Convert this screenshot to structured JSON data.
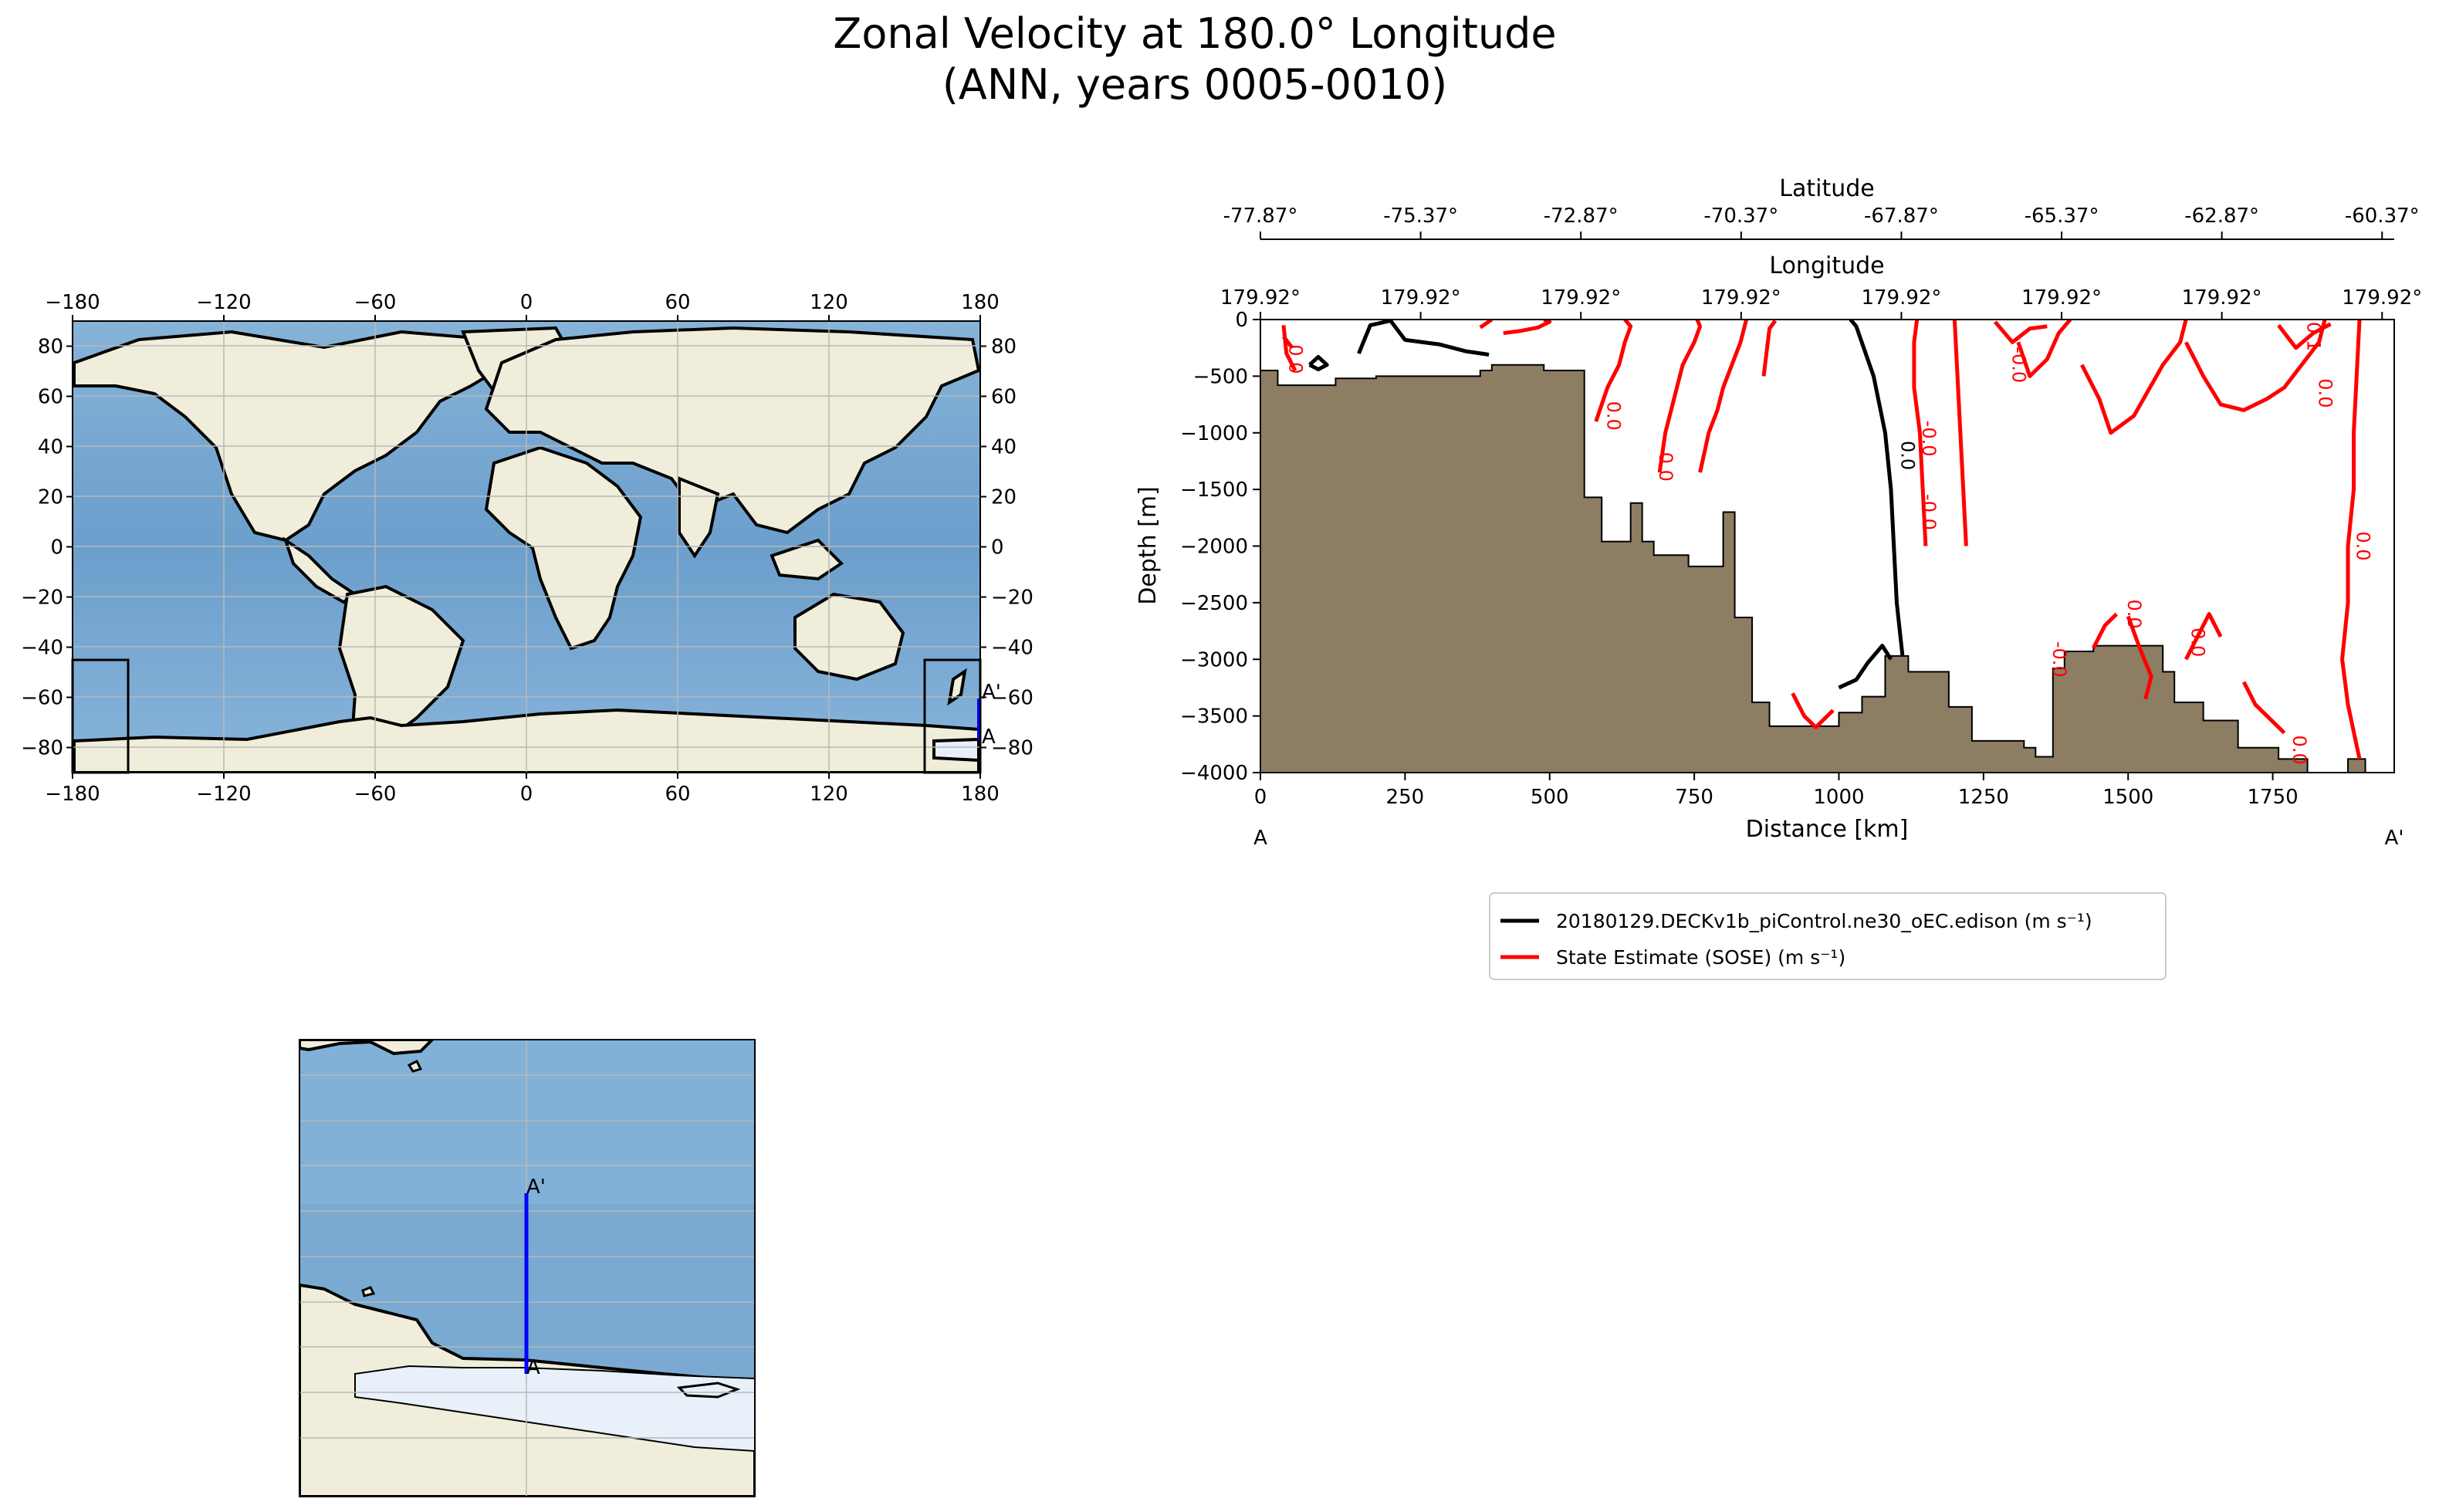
{
  "title": {
    "line1": "Zonal Velocity at 180.0° Longitude",
    "line2": "(ANN, years 0005-0010)"
  },
  "colors": {
    "ocean": "#7aaad2",
    "ocean_dark": "#5f93c2",
    "land": "#f0eedb",
    "ice": "#e8f0fa",
    "seafloor": "#8c7d63",
    "model_line": "#000000",
    "sose_line": "#ff0000",
    "transect": "#0000ff",
    "grid": "#b0b0b0"
  },
  "map": {
    "lon_ticks": [
      "−180",
      "−120",
      "−60",
      "0",
      "60",
      "120",
      "180"
    ],
    "lat_ticks": [
      "80",
      "60",
      "40",
      "20",
      "0",
      "−20",
      "−40",
      "−60",
      "−80"
    ],
    "lon_values": [
      -180,
      -120,
      -60,
      0,
      60,
      120,
      180
    ],
    "lat_values": [
      80,
      60,
      40,
      20,
      0,
      -20,
      -40,
      -60,
      -80
    ],
    "start_label": "A",
    "end_label": "A'"
  },
  "inset": {
    "start_label": "A",
    "end_label": "A'"
  },
  "chart_data": {
    "type": "line",
    "title": "Zonal Velocity at 180.0° Longitude",
    "xlabel": "Distance [km]",
    "ylabel": "Depth [m]",
    "xlim": [
      0,
      1960
    ],
    "ylim": [
      -4000,
      0
    ],
    "x_ticks": [
      0,
      250,
      500,
      750,
      1000,
      1250,
      1500,
      1750
    ],
    "x_tick_labels": [
      "0",
      "250",
      "500",
      "750",
      "1000",
      "1250",
      "1500",
      "1750"
    ],
    "y_ticks": [
      0,
      -500,
      -1000,
      -1500,
      -2000,
      -2500,
      -3000,
      -3500,
      -4000
    ],
    "y_tick_labels": [
      "0",
      "−500",
      "−1000",
      "−1500",
      "−2000",
      "−2500",
      "−3000",
      "−3500",
      "−4000"
    ],
    "top_axis_1_label": "Latitude",
    "top_axis_1_ticks": [
      "-77.87°",
      "-75.37°",
      "-72.87°",
      "-70.37°",
      "-67.87°",
      "-65.37°",
      "-62.87°",
      "-60.37°"
    ],
    "top_axis_2_label": "Longitude",
    "top_axis_2_ticks": [
      "179.92°",
      "179.92°",
      "179.92°",
      "179.92°",
      "179.92°",
      "179.92°",
      "179.92°",
      "179.92°"
    ],
    "top_tick_x": [
      0,
      277,
      554,
      831,
      1108,
      1385,
      1662,
      1939
    ],
    "start_label": "A",
    "end_label": "A'",
    "contour_labels": [
      "0.0",
      "-0.0",
      "0.1"
    ],
    "bathymetry": [
      [
        0,
        -450
      ],
      [
        30,
        -450
      ],
      [
        30,
        -580
      ],
      [
        130,
        -580
      ],
      [
        130,
        -520
      ],
      [
        200,
        -520
      ],
      [
        200,
        -500
      ],
      [
        380,
        -500
      ],
      [
        380,
        -450
      ],
      [
        400,
        -450
      ],
      [
        400,
        -400
      ],
      [
        490,
        -400
      ],
      [
        490,
        -450
      ],
      [
        560,
        -450
      ],
      [
        560,
        -1570
      ],
      [
        590,
        -1570
      ],
      [
        590,
        -1960
      ],
      [
        640,
        -1960
      ],
      [
        640,
        -1620
      ],
      [
        660,
        -1620
      ],
      [
        660,
        -1960
      ],
      [
        680,
        -1960
      ],
      [
        680,
        -2080
      ],
      [
        740,
        -2080
      ],
      [
        740,
        -2180
      ],
      [
        800,
        -2180
      ],
      [
        800,
        -1700
      ],
      [
        820,
        -1700
      ],
      [
        820,
        -2630
      ],
      [
        850,
        -2630
      ],
      [
        850,
        -3380
      ],
      [
        880,
        -3380
      ],
      [
        880,
        -3590
      ],
      [
        1000,
        -3590
      ],
      [
        1000,
        -3470
      ],
      [
        1040,
        -3470
      ],
      [
        1040,
        -3330
      ],
      [
        1080,
        -3330
      ],
      [
        1080,
        -2970
      ],
      [
        1120,
        -2970
      ],
      [
        1120,
        -3110
      ],
      [
        1190,
        -3110
      ],
      [
        1190,
        -3420
      ],
      [
        1230,
        -3420
      ],
      [
        1230,
        -3720
      ],
      [
        1320,
        -3720
      ],
      [
        1320,
        -3780
      ],
      [
        1340,
        -3780
      ],
      [
        1340,
        -3860
      ],
      [
        1370,
        -3860
      ],
      [
        1370,
        -3080
      ],
      [
        1390,
        -3080
      ],
      [
        1390,
        -2930
      ],
      [
        1440,
        -2930
      ],
      [
        1440,
        -2880
      ],
      [
        1560,
        -2880
      ],
      [
        1560,
        -3110
      ],
      [
        1580,
        -3110
      ],
      [
        1580,
        -3380
      ],
      [
        1630,
        -3380
      ],
      [
        1630,
        -3540
      ],
      [
        1690,
        -3540
      ],
      [
        1690,
        -3780
      ],
      [
        1760,
        -3780
      ],
      [
        1760,
        -3880
      ],
      [
        1810,
        -3880
      ],
      [
        1810,
        -4000
      ],
      [
        1880,
        -4000
      ],
      [
        1880,
        -3880
      ],
      [
        1910,
        -3880
      ],
      [
        1910,
        -4000
      ]
    ],
    "series": [
      {
        "name": "20180129.DECKv1b_piControl.ne30_oEC.edison (m s⁻¹)",
        "color": "#000000",
        "contours": [
          [
            [
              1110,
              -2970
            ],
            [
              1100,
              -2500
            ],
            [
              1095,
              -2000
            ],
            [
              1090,
              -1500
            ],
            [
              1080,
              -1000
            ],
            [
              1060,
              -500
            ],
            [
              1030,
              -60
            ],
            [
              1020,
              0
            ]
          ],
          [
            [
              170,
              -300
            ],
            [
              190,
              -50
            ],
            [
              225,
              -10
            ],
            [
              250,
              -180
            ],
            [
              310,
              -220
            ],
            [
              355,
              -280
            ],
            [
              395,
              -310
            ]
          ],
          [
            [
              85,
              -400
            ],
            [
              100,
              -330
            ],
            [
              115,
              -400
            ],
            [
              100,
              -440
            ],
            [
              85,
              -400
            ]
          ],
          [
            [
              1000,
              -3250
            ],
            [
              1030,
              -3180
            ],
            [
              1050,
              -3030
            ],
            [
              1075,
              -2880
            ],
            [
              1090,
              -3000
            ]
          ]
        ]
      },
      {
        "name": "State Estimate (SOSE) (m s⁻¹)",
        "color": "#ff0000",
        "contours": [
          [
            [
              40,
              -50
            ],
            [
              45,
              -300
            ],
            [
              60,
              -450
            ]
          ],
          [
            [
              40,
              -150
            ],
            [
              55,
              -250
            ]
          ],
          [
            [
              380,
              -70
            ],
            [
              400,
              0
            ]
          ],
          [
            [
              420,
              -120
            ],
            [
              450,
              -100
            ],
            [
              480,
              -70
            ],
            [
              500,
              -20
            ],
            [
              490,
              0
            ]
          ],
          [
            [
              580,
              -900
            ],
            [
              600,
              -600
            ],
            [
              620,
              -400
            ],
            [
              630,
              -200
            ],
            [
              640,
              -60
            ],
            [
              630,
              0
            ]
          ],
          [
            [
              690,
              -1350
            ],
            [
              700,
              -1000
            ],
            [
              720,
              -600
            ],
            [
              730,
              -400
            ],
            [
              750,
              -200
            ],
            [
              760,
              -60
            ],
            [
              755,
              0
            ]
          ],
          [
            [
              760,
              -1350
            ],
            [
              775,
              -1000
            ],
            [
              790,
              -800
            ],
            [
              800,
              -600
            ],
            [
              815,
              -400
            ],
            [
              830,
              -200
            ],
            [
              840,
              0
            ]
          ],
          [
            [
              870,
              -500
            ],
            [
              880,
              -80
            ],
            [
              890,
              -10
            ]
          ],
          [
            [
              1150,
              -2000
            ],
            [
              1145,
              -1500
            ],
            [
              1140,
              -1000
            ],
            [
              1130,
              -600
            ],
            [
              1130,
              -200
            ],
            [
              1135,
              0
            ]
          ],
          [
            [
              1220,
              -2000
            ],
            [
              1215,
              -1500
            ],
            [
              1210,
              -1000
            ],
            [
              1205,
              -500
            ],
            [
              1200,
              0
            ]
          ],
          [
            [
              1270,
              -20
            ],
            [
              1300,
              -200
            ],
            [
              1330,
              -80
            ],
            [
              1360,
              -60
            ]
          ],
          [
            [
              1310,
              -200
            ],
            [
              1330,
              -500
            ],
            [
              1360,
              -350
            ],
            [
              1380,
              -120
            ],
            [
              1400,
              0
            ]
          ],
          [
            [
              1420,
              -400
            ],
            [
              1450,
              -700
            ],
            [
              1470,
              -1000
            ],
            [
              1510,
              -850
            ],
            [
              1560,
              -400
            ],
            [
              1590,
              -200
            ],
            [
              1600,
              0
            ]
          ],
          [
            [
              1600,
              -200
            ],
            [
              1630,
              -500
            ],
            [
              1660,
              -750
            ],
            [
              1700,
              -800
            ],
            [
              1740,
              -700
            ],
            [
              1770,
              -600
            ],
            [
              1800,
              -400
            ],
            [
              1830,
              -200
            ],
            [
              1840,
              0
            ]
          ],
          [
            [
              1760,
              -50
            ],
            [
              1790,
              -250
            ],
            [
              1820,
              -120
            ],
            [
              1850,
              -40
            ]
          ],
          [
            [
              1900,
              0
            ],
            [
              1895,
              -500
            ],
            [
              1890,
              -1000
            ],
            [
              1890,
              -1500
            ],
            [
              1880,
              -2000
            ],
            [
              1880,
              -2500
            ],
            [
              1870,
              -3000
            ],
            [
              1880,
              -3400
            ],
            [
              1900,
              -3880
            ]
          ],
          [
            [
              1500,
              -2620
            ],
            [
              1520,
              -2900
            ],
            [
              1540,
              -3150
            ],
            [
              1530,
              -3350
            ]
          ],
          [
            [
              1440,
              -2900
            ],
            [
              1460,
              -2700
            ],
            [
              1480,
              -2600
            ]
          ],
          [
            [
              1600,
              -3000
            ],
            [
              1620,
              -2800
            ],
            [
              1640,
              -2600
            ],
            [
              1660,
              -2800
            ]
          ],
          [
            [
              1700,
              -3200
            ],
            [
              1720,
              -3400
            ],
            [
              1750,
              -3550
            ],
            [
              1770,
              -3650
            ]
          ],
          [
            [
              920,
              -3300
            ],
            [
              940,
              -3500
            ],
            [
              960,
              -3600
            ],
            [
              990,
              -3450
            ]
          ]
        ]
      }
    ]
  }
}
